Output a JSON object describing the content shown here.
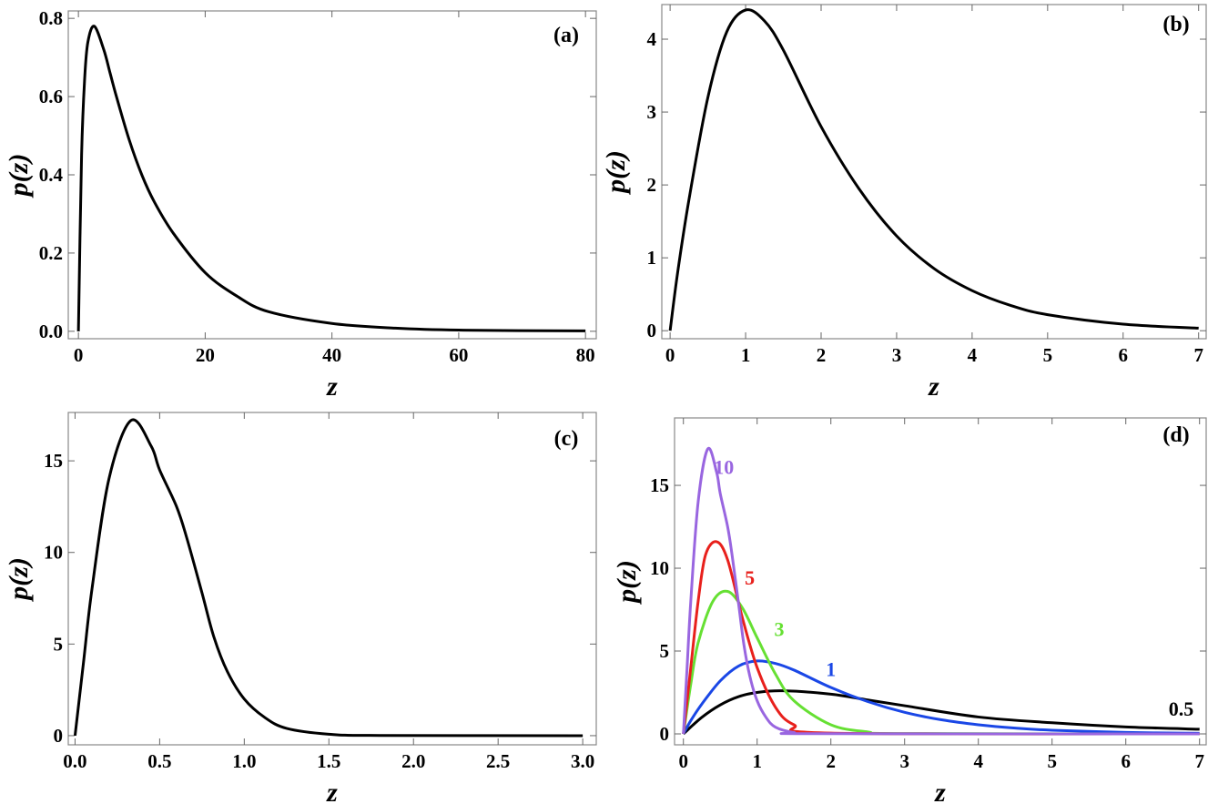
{
  "chart_data": [
    {
      "type": "line",
      "panel_label": "(a)",
      "xlabel": "z",
      "ylabel": "p(z)",
      "xlim": [
        -1.6,
        81.7
      ],
      "ylim": [
        -0.019,
        0.819
      ],
      "xticks": [
        "0",
        "20",
        "40",
        "60",
        "80"
      ],
      "yticks": [
        "0.0",
        "0.2",
        "0.4",
        "0.6",
        "0.8"
      ],
      "grid": false,
      "series": [
        {
          "color": "#000000",
          "x": [
            0,
            0.5,
            1,
            1.5,
            2.5,
            4,
            5,
            6,
            8,
            10,
            12,
            15,
            20,
            25,
            30,
            40,
            50,
            60,
            80
          ],
          "y": [
            0,
            0.45,
            0.65,
            0.74,
            0.78,
            0.72,
            0.66,
            0.6,
            0.49,
            0.4,
            0.33,
            0.25,
            0.15,
            0.09,
            0.05,
            0.02,
            0.008,
            0.003,
            0.001
          ]
        }
      ]
    },
    {
      "type": "line",
      "panel_label": "(b)",
      "xlabel": "z",
      "ylabel": "p(z)",
      "xlim": [
        -0.11,
        7.1
      ],
      "ylim": [
        -0.11,
        4.475
      ],
      "xticks": [
        "0",
        "1",
        "2",
        "3",
        "4",
        "5",
        "6",
        "7"
      ],
      "yticks": [
        "0",
        "1",
        "2",
        "3",
        "4"
      ],
      "grid": false,
      "series": [
        {
          "color": "#000000",
          "x": [
            0,
            0.1,
            0.25,
            0.5,
            0.75,
            1,
            1.25,
            1.5,
            2,
            2.5,
            3,
            3.5,
            4,
            4.5,
            5,
            6,
            7
          ],
          "y": [
            0,
            0.8,
            1.8,
            3.2,
            4.1,
            4.4,
            4.25,
            3.85,
            2.8,
            1.95,
            1.3,
            0.85,
            0.55,
            0.35,
            0.22,
            0.09,
            0.035
          ]
        }
      ]
    },
    {
      "type": "line",
      "panel_label": "(c)",
      "xlabel": "z",
      "ylabel": "p(z)",
      "xlim": [
        -0.04,
        3.08
      ],
      "ylim": [
        -0.5,
        17.64
      ],
      "xticks": [
        "0.0",
        "0.5",
        "1.0",
        "1.5",
        "2.0",
        "2.5",
        "3.0"
      ],
      "yticks": [
        "0",
        "5",
        "10",
        "15"
      ],
      "grid": false,
      "series": [
        {
          "color": "#000000",
          "x": [
            0,
            0.05,
            0.1,
            0.2,
            0.33,
            0.45,
            0.5,
            0.6,
            0.66,
            0.75,
            0.82,
            0.9,
            1.0,
            1.12,
            1.25,
            1.5,
            1.8,
            3.0
          ],
          "y": [
            0,
            4,
            8,
            14,
            17.2,
            15.8,
            14.5,
            12.5,
            10.8,
            7.8,
            5.4,
            3.5,
            2.0,
            1.0,
            0.4,
            0.08,
            0.01,
            0
          ]
        }
      ]
    },
    {
      "type": "line",
      "panel_label": "(d)",
      "xlabel": "z",
      "ylabel": "p(z)",
      "xlim": [
        -0.12,
        7.09
      ],
      "ylim": [
        -0.66,
        19.07
      ],
      "xticks": [
        "0",
        "1",
        "2",
        "3",
        "4",
        "5",
        "6",
        "7"
      ],
      "yticks": [
        "0",
        "5",
        "10",
        "15"
      ],
      "grid": false,
      "series": [
        {
          "name": "0.5",
          "color": "#000000",
          "x": [
            0,
            0.25,
            0.5,
            0.75,
            1,
            1.35,
            2,
            2.5,
            3,
            4,
            5,
            6,
            7
          ],
          "y": [
            0,
            1.0,
            1.75,
            2.25,
            2.5,
            2.6,
            2.4,
            2.05,
            1.7,
            1.02,
            0.67,
            0.42,
            0.28
          ]
        },
        {
          "name": "1",
          "color": "#1a47e6",
          "x": [
            0,
            0.1,
            0.25,
            0.5,
            0.75,
            1,
            1.25,
            1.5,
            2,
            2.5,
            3,
            3.5,
            4,
            4.5,
            5,
            6,
            7
          ],
          "y": [
            0,
            0.8,
            1.8,
            3.2,
            4.1,
            4.4,
            4.25,
            3.85,
            2.8,
            1.95,
            1.3,
            0.85,
            0.55,
            0.35,
            0.22,
            0.09,
            0.035
          ]
        },
        {
          "name": "3",
          "color": "#66e033",
          "x": [
            0,
            0.1,
            0.2,
            0.4,
            0.6,
            0.8,
            1,
            1.25,
            1.5,
            2,
            2.5,
            3,
            7
          ],
          "y": [
            0,
            3,
            5.5,
            8,
            8.6,
            7.6,
            5.8,
            3.6,
            2,
            0.55,
            0.12,
            0.02,
            0
          ]
        },
        {
          "name": "5",
          "color": "#e8201c",
          "x": [
            0,
            0.1,
            0.2,
            0.3,
            0.45,
            0.6,
            0.8,
            1,
            1.25,
            1.5,
            2,
            7
          ],
          "y": [
            0,
            4,
            8,
            10.8,
            11.6,
            10.5,
            7,
            4,
            1.6,
            0.55,
            0.05,
            0
          ]
        },
        {
          "name": "10",
          "color": "#9966e0",
          "x": [
            0,
            0.05,
            0.1,
            0.2,
            0.33,
            0.45,
            0.5,
            0.6,
            0.66,
            0.75,
            0.82,
            0.9,
            1.0,
            1.12,
            1.25,
            1.5,
            1.8,
            7
          ],
          "y": [
            0,
            4,
            8,
            14,
            17.2,
            15.8,
            14.5,
            12.5,
            10.8,
            7.8,
            5.4,
            3.5,
            2.0,
            1.0,
            0.4,
            0.08,
            0.01,
            0
          ]
        }
      ]
    }
  ]
}
